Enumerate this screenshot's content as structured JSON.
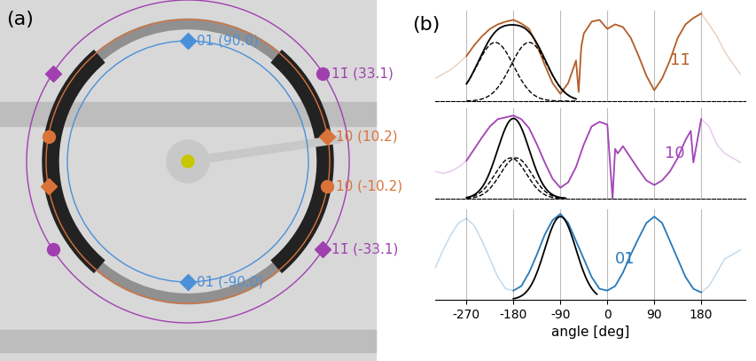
{
  "panel_a": {
    "label": "(a)",
    "rings": [
      {
        "color": "#4a90d9",
        "markers": [
          {
            "angle": 90.0,
            "marker": "diamond",
            "label": "01 (90.0)"
          },
          {
            "angle": -90.0,
            "marker": "diamond",
            "label": "01 (-90.0)"
          }
        ]
      },
      {
        "color": "#d9733a",
        "markers": [
          {
            "angle": 10.2,
            "marker": "diamond",
            "label": "10 (10.2)"
          },
          {
            "angle": -10.2,
            "marker": "circle",
            "label": "10 (-10.2)"
          },
          {
            "angle": 169.8,
            "marker": "circle"
          },
          {
            "angle": -169.8,
            "marker": "diamond"
          }
        ]
      },
      {
        "color": "#a040b0",
        "markers": [
          {
            "angle": 33.1,
            "marker": "circle",
            "label": "11̄ (33.1)"
          },
          {
            "angle": -33.1,
            "marker": "diamond",
            "label": "11̄ (-33.1)"
          },
          {
            "angle": 146.9,
            "marker": "diamond"
          },
          {
            "angle": -146.9,
            "marker": "circle"
          }
        ]
      }
    ]
  },
  "chart_data": {
    "type": "line",
    "panel": "(b)",
    "xlabel": "angle [deg]",
    "xlim": [
      -330,
      265
    ],
    "xticks": [
      -270,
      -180,
      -90,
      0,
      90,
      180
    ],
    "grid": true,
    "tick_labels": "x",
    "series": [
      {
        "name": "11̄",
        "color": "#b5602a",
        "ylim": [
          0,
          1
        ],
        "yticks": [],
        "solid_range": [
          -270,
          180
        ],
        "x": [
          -330,
          -315,
          -300,
          -285,
          -270,
          -255,
          -240,
          -225,
          -210,
          -195,
          -180,
          -165,
          -150,
          -135,
          -120,
          -105,
          -90,
          -75,
          -60,
          -55,
          -50,
          -45,
          -30,
          -15,
          0,
          15,
          30,
          45,
          60,
          75,
          90,
          105,
          120,
          135,
          150,
          165,
          180,
          195,
          210,
          225,
          240,
          255
        ],
        "values": [
          0.25,
          0.3,
          0.35,
          0.42,
          0.5,
          0.62,
          0.72,
          0.8,
          0.85,
          0.88,
          0.9,
          0.86,
          0.8,
          0.62,
          0.4,
          0.2,
          0.08,
          0.2,
          0.45,
          0.1,
          0.6,
          0.75,
          0.88,
          0.9,
          0.8,
          0.85,
          0.82,
          0.7,
          0.5,
          0.28,
          0.12,
          0.25,
          0.45,
          0.7,
          0.85,
          0.92,
          0.97,
          0.85,
          0.72,
          0.55,
          0.42,
          0.3
        ],
        "fit": {
          "range": [
            -270,
            -60
          ],
          "components": [
            {
              "center": -215,
              "sigma": 35,
              "amplitude": 0.65
            },
            {
              "center": -150,
              "sigma": 35,
              "amplitude": 0.65
            }
          ]
        }
      },
      {
        "name": "10",
        "color": "#a347b8",
        "ylim": [
          0,
          1
        ],
        "yticks": [],
        "solid_range": [
          -270,
          180
        ],
        "x": [
          -330,
          -315,
          -300,
          -285,
          -270,
          -255,
          -240,
          -225,
          -210,
          -195,
          -180,
          -165,
          -150,
          -135,
          -120,
          -105,
          -90,
          -75,
          -60,
          -45,
          -30,
          -15,
          0,
          10,
          15,
          20,
          30,
          45,
          60,
          75,
          90,
          105,
          120,
          135,
          150,
          160,
          165,
          180,
          195,
          210,
          225,
          240,
          255
        ],
        "values": [
          0.3,
          0.28,
          0.3,
          0.35,
          0.42,
          0.55,
          0.68,
          0.8,
          0.88,
          0.9,
          0.92,
          0.88,
          0.78,
          0.6,
          0.4,
          0.22,
          0.12,
          0.18,
          0.35,
          0.6,
          0.8,
          0.85,
          0.82,
          0.0,
          0.55,
          0.5,
          0.58,
          0.45,
          0.32,
          0.2,
          0.15,
          0.2,
          0.3,
          0.45,
          0.65,
          0.75,
          0.4,
          0.88,
          0.8,
          0.6,
          0.5,
          0.45,
          0.4
        ],
        "fit": {
          "range": [
            -270,
            -80
          ],
          "components": [
            {
              "center": -185,
              "sigma": 30,
              "amplitude": 0.45
            },
            {
              "center": -175,
              "sigma": 30,
              "amplitude": 0.45
            }
          ]
        }
      },
      {
        "name": "01",
        "color": "#2b7bb9",
        "ylim": [
          0,
          1
        ],
        "yticks": [],
        "solid_range": [
          -180,
          180
        ],
        "x": [
          -330,
          -315,
          -300,
          -285,
          -270,
          -255,
          -240,
          -225,
          -210,
          -195,
          -180,
          -165,
          -150,
          -135,
          -120,
          -105,
          -90,
          -75,
          -60,
          -45,
          -30,
          -15,
          0,
          15,
          30,
          45,
          60,
          75,
          90,
          105,
          120,
          135,
          150,
          165,
          180,
          195,
          210,
          225,
          240,
          255
        ],
        "values": [
          0.35,
          0.55,
          0.72,
          0.85,
          0.9,
          0.82,
          0.65,
          0.45,
          0.25,
          0.12,
          0.1,
          0.15,
          0.3,
          0.5,
          0.72,
          0.88,
          0.95,
          0.85,
          0.65,
          0.45,
          0.25,
          0.12,
          0.1,
          0.15,
          0.3,
          0.5,
          0.68,
          0.85,
          0.92,
          0.85,
          0.65,
          0.45,
          0.25,
          0.12,
          0.08,
          0.15,
          0.3,
          0.45,
          0.5,
          0.55
        ],
        "fit": {
          "range": [
            -180,
            -20
          ],
          "components": [
            {
              "center": -90,
              "sigma": 30,
              "amplitude": 0.92
            }
          ]
        }
      }
    ]
  }
}
